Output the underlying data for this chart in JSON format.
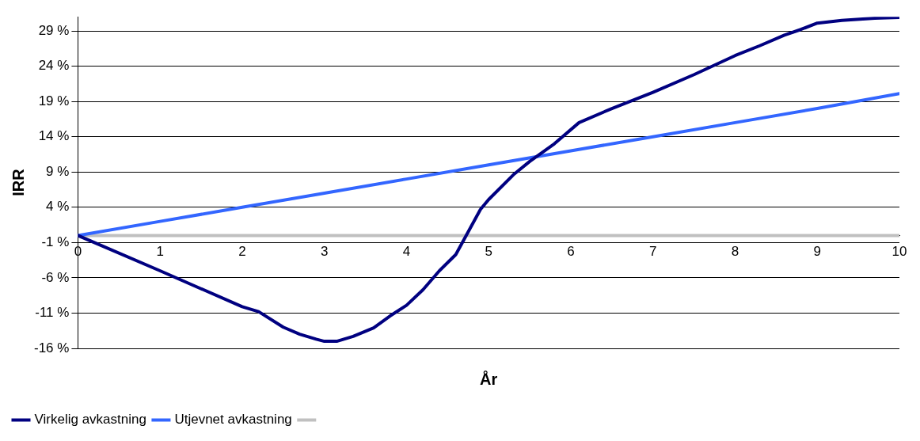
{
  "chart_data": {
    "type": "line",
    "xlabel": "År",
    "ylabel": "IRR",
    "xlim": [
      0,
      10
    ],
    "xticks": [
      0,
      1,
      2,
      3,
      4,
      5,
      6,
      7,
      8,
      9,
      10
    ],
    "ylim": [
      -16,
      31
    ],
    "yticks": [
      {
        "value": -16,
        "label": "-16 %"
      },
      {
        "value": -11,
        "label": "-11 %"
      },
      {
        "value": -6,
        "label": "-6 %"
      },
      {
        "value": -1,
        "label": "-1 %"
      },
      {
        "value": 4,
        "label": "4 %"
      },
      {
        "value": 9,
        "label": "9 %"
      },
      {
        "value": 14,
        "label": "14 %"
      },
      {
        "value": 19,
        "label": "19 %"
      },
      {
        "value": 24,
        "label": "24 %"
      },
      {
        "value": 29,
        "label": "29 %"
      }
    ],
    "grid": "y",
    "legend": "bottom left",
    "marker": "none",
    "line_style": "solid",
    "series": [
      {
        "name": "Virkelig avkastning",
        "color": "#000080",
        "x": [
          0,
          1,
          2,
          2.2,
          2.5,
          2.7,
          2.9,
          3,
          3.15,
          3.35,
          3.6,
          3.8,
          4,
          4.2,
          4.4,
          4.6,
          4.75,
          4.9,
          5,
          5.3,
          5.5,
          5.8,
          6.1,
          6.5,
          7,
          7.5,
          8,
          8.3,
          8.6,
          8.8,
          9,
          9.3,
          9.7,
          10
        ],
        "values": [
          0,
          -5,
          -10.1,
          -10.8,
          -13,
          -14,
          -14.7,
          -15,
          -15,
          -14.3,
          -13.1,
          -11.4,
          -9.9,
          -7.7,
          -5,
          -2.7,
          0.5,
          3.7,
          5.1,
          8.6,
          10.5,
          13,
          16,
          18,
          20.3,
          22.8,
          25.5,
          26.9,
          28.4,
          29.2,
          30.1,
          30.5,
          30.8,
          30.9
        ]
      },
      {
        "name": "Utjevnet avkastning",
        "color": "#3366ff",
        "x": [
          0,
          1,
          2,
          3,
          4,
          5,
          6,
          7,
          8,
          9,
          10
        ],
        "values": [
          0,
          2,
          4,
          6,
          8,
          10,
          12,
          14,
          16,
          18,
          20.1
        ]
      },
      {
        "color": "#c0c0c0",
        "x": [
          0,
          10
        ],
        "values": [
          0,
          0
        ]
      }
    ]
  }
}
